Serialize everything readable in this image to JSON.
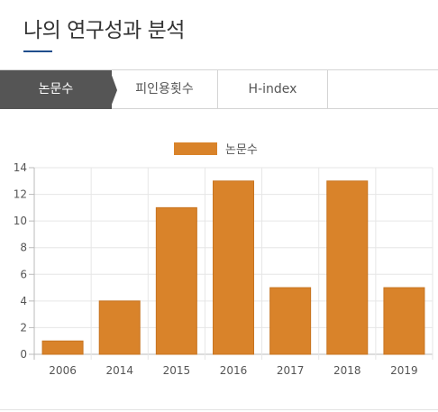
{
  "page_title": "나의 연구성과 분석",
  "tabs": [
    {
      "label": "논문수",
      "active": true
    },
    {
      "label": "피인용횟수",
      "active": false
    },
    {
      "label": "H-index",
      "active": false
    }
  ],
  "colors": {
    "bar": "#d9832a",
    "active_tab": "#555555",
    "accent_underline": "#1f4e8c"
  },
  "chart_data": {
    "type": "bar",
    "categories": [
      "2006",
      "2014",
      "2015",
      "2016",
      "2017",
      "2018",
      "2019"
    ],
    "series": [
      {
        "name": "논문수",
        "values": [
          1,
          4,
          11,
          13,
          5,
          13,
          5
        ]
      }
    ],
    "title": "",
    "xlabel": "",
    "ylabel": "",
    "ylim": [
      0,
      14
    ],
    "yticks": [
      "0",
      "2",
      "4",
      "6",
      "8",
      "10",
      "12",
      "14"
    ],
    "grid": true,
    "legend": "top-center"
  }
}
